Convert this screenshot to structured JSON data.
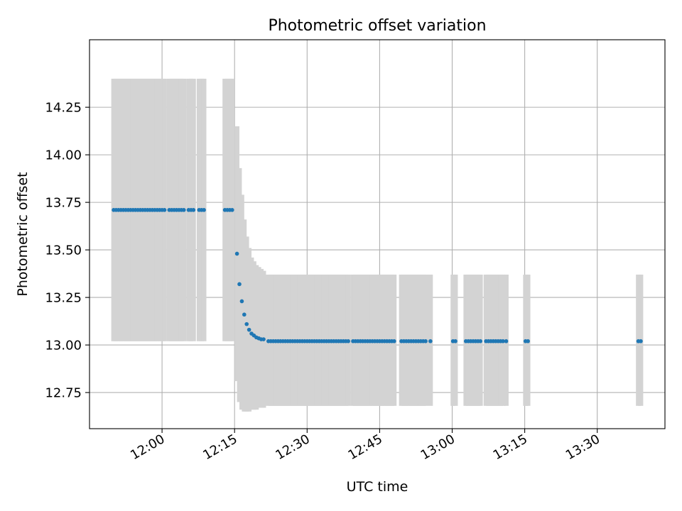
{
  "chart_data": {
    "type": "scatter",
    "title": "Photometric offset variation",
    "xlabel": "UTC time",
    "ylabel": "Photometric offset",
    "x_unit": "UTC time (HH:MM)",
    "xlim": [
      "11:45",
      "13:44"
    ],
    "ylim": [
      12.56,
      14.605
    ],
    "xticks": [
      "12:00",
      "12:15",
      "12:30",
      "12:45",
      "13:00",
      "13:15",
      "13:30"
    ],
    "yticks": [
      "12.75",
      "13.00",
      "13.25",
      "13.50",
      "13.75",
      "14.00",
      "14.25"
    ],
    "grid": true,
    "colors": {
      "points": "#1f77b4",
      "error_band": "#d3d3d3",
      "grid": "#b0b0b0"
    },
    "series": [
      {
        "points": [
          {
            "x": "11:50",
            "y": 13.71,
            "ylo": 13.02,
            "yhi": 14.4
          },
          {
            "x": "11:50:30",
            "y": 13.71,
            "ylo": 13.02,
            "yhi": 14.4
          },
          {
            "x": "11:51",
            "y": 13.71,
            "ylo": 13.02,
            "yhi": 14.4
          },
          {
            "x": "11:51:30",
            "y": 13.71,
            "ylo": 13.02,
            "yhi": 14.4
          },
          {
            "x": "11:52",
            "y": 13.71,
            "ylo": 13.02,
            "yhi": 14.4
          },
          {
            "x": "11:52:30",
            "y": 13.71,
            "ylo": 13.02,
            "yhi": 14.4
          },
          {
            "x": "11:53",
            "y": 13.71,
            "ylo": 13.02,
            "yhi": 14.4
          },
          {
            "x": "11:53:30",
            "y": 13.71,
            "ylo": 13.02,
            "yhi": 14.4
          },
          {
            "x": "11:54",
            "y": 13.71,
            "ylo": 13.02,
            "yhi": 14.4
          },
          {
            "x": "11:54:30",
            "y": 13.71,
            "ylo": 13.02,
            "yhi": 14.4
          },
          {
            "x": "11:55",
            "y": 13.71,
            "ylo": 13.02,
            "yhi": 14.4
          },
          {
            "x": "11:55:30",
            "y": 13.71,
            "ylo": 13.02,
            "yhi": 14.4
          },
          {
            "x": "11:56",
            "y": 13.71,
            "ylo": 13.02,
            "yhi": 14.4
          },
          {
            "x": "11:56:30",
            "y": 13.71,
            "ylo": 13.02,
            "yhi": 14.4
          },
          {
            "x": "11:57",
            "y": 13.71,
            "ylo": 13.02,
            "yhi": 14.4
          },
          {
            "x": "11:57:30",
            "y": 13.71,
            "ylo": 13.02,
            "yhi": 14.4
          },
          {
            "x": "11:58",
            "y": 13.71,
            "ylo": 13.02,
            "yhi": 14.4
          },
          {
            "x": "11:58:30",
            "y": 13.71,
            "ylo": 13.02,
            "yhi": 14.4
          },
          {
            "x": "11:59",
            "y": 13.71,
            "ylo": 13.02,
            "yhi": 14.4
          },
          {
            "x": "11:59:30",
            "y": 13.71,
            "ylo": 13.02,
            "yhi": 14.4
          },
          {
            "x": "12:00",
            "y": 13.71,
            "ylo": 13.02,
            "yhi": 14.4
          },
          {
            "x": "12:00:30",
            "y": 13.71,
            "ylo": 13.02,
            "yhi": 14.4
          },
          {
            "x": "12:01:30",
            "y": 13.71,
            "ylo": 13.02,
            "yhi": 14.4
          },
          {
            "x": "12:02",
            "y": 13.71,
            "ylo": 13.02,
            "yhi": 14.4
          },
          {
            "x": "12:02:30",
            "y": 13.71,
            "ylo": 13.02,
            "yhi": 14.4
          },
          {
            "x": "12:03",
            "y": 13.71,
            "ylo": 13.02,
            "yhi": 14.4
          },
          {
            "x": "12:03:30",
            "y": 13.71,
            "ylo": 13.02,
            "yhi": 14.4
          },
          {
            "x": "12:04",
            "y": 13.71,
            "ylo": 13.02,
            "yhi": 14.4
          },
          {
            "x": "12:04:30",
            "y": 13.71,
            "ylo": 13.02,
            "yhi": 14.4
          },
          {
            "x": "12:05:30",
            "y": 13.71,
            "ylo": 13.02,
            "yhi": 14.4
          },
          {
            "x": "12:06",
            "y": 13.71,
            "ylo": 13.02,
            "yhi": 14.4
          },
          {
            "x": "12:06:30",
            "y": 13.71,
            "ylo": 13.02,
            "yhi": 14.4
          },
          {
            "x": "12:07:40",
            "y": 13.71,
            "ylo": 13.02,
            "yhi": 14.4
          },
          {
            "x": "12:08:10",
            "y": 13.71,
            "ylo": 13.02,
            "yhi": 14.4
          },
          {
            "x": "12:08:40",
            "y": 13.71,
            "ylo": 13.02,
            "yhi": 14.4
          },
          {
            "x": "12:13",
            "y": 13.71,
            "ylo": 13.02,
            "yhi": 14.4
          },
          {
            "x": "12:13:30",
            "y": 13.71,
            "ylo": 13.02,
            "yhi": 14.4
          },
          {
            "x": "12:14",
            "y": 13.71,
            "ylo": 13.02,
            "yhi": 14.4
          },
          {
            "x": "12:14:30",
            "y": 13.71,
            "ylo": 13.02,
            "yhi": 14.4
          },
          {
            "x": "12:15:30",
            "y": 13.48,
            "ylo": 12.81,
            "yhi": 14.15
          },
          {
            "x": "12:16",
            "y": 13.32,
            "ylo": 12.7,
            "yhi": 13.93
          },
          {
            "x": "12:16:30",
            "y": 13.23,
            "ylo": 12.66,
            "yhi": 13.79
          },
          {
            "x": "12:17",
            "y": 13.16,
            "ylo": 12.65,
            "yhi": 13.66
          },
          {
            "x": "12:17:30",
            "y": 13.11,
            "ylo": 12.65,
            "yhi": 13.57
          },
          {
            "x": "12:18",
            "y": 13.08,
            "ylo": 12.65,
            "yhi": 13.51
          },
          {
            "x": "12:18:30",
            "y": 13.06,
            "ylo": 12.66,
            "yhi": 13.46
          },
          {
            "x": "12:19",
            "y": 13.05,
            "ylo": 12.66,
            "yhi": 13.44
          },
          {
            "x": "12:19:30",
            "y": 13.04,
            "ylo": 12.66,
            "yhi": 13.42
          },
          {
            "x": "12:20",
            "y": 13.035,
            "ylo": 12.67,
            "yhi": 13.41
          },
          {
            "x": "12:20:30",
            "y": 13.03,
            "ylo": 12.67,
            "yhi": 13.4
          },
          {
            "x": "12:21",
            "y": 13.03,
            "ylo": 12.67,
            "yhi": 13.39
          },
          {
            "x": "12:22",
            "y": 13.02,
            "ylo": 12.68,
            "yhi": 13.37
          },
          {
            "x": "12:22:30",
            "y": 13.02,
            "ylo": 12.68,
            "yhi": 13.37
          },
          {
            "x": "12:23",
            "y": 13.02,
            "ylo": 12.68,
            "yhi": 13.37
          },
          {
            "x": "12:23:30",
            "y": 13.02,
            "ylo": 12.68,
            "yhi": 13.37
          },
          {
            "x": "12:24",
            "y": 13.02,
            "ylo": 12.68,
            "yhi": 13.37
          },
          {
            "x": "12:24:30",
            "y": 13.02,
            "ylo": 12.68,
            "yhi": 13.37
          },
          {
            "x": "12:25",
            "y": 13.02,
            "ylo": 12.68,
            "yhi": 13.37
          },
          {
            "x": "12:25:30",
            "y": 13.02,
            "ylo": 12.68,
            "yhi": 13.37
          },
          {
            "x": "12:26",
            "y": 13.02,
            "ylo": 12.68,
            "yhi": 13.37
          },
          {
            "x": "12:26:30",
            "y": 13.02,
            "ylo": 12.68,
            "yhi": 13.37
          },
          {
            "x": "12:27",
            "y": 13.02,
            "ylo": 12.68,
            "yhi": 13.37
          },
          {
            "x": "12:27:30",
            "y": 13.02,
            "ylo": 12.68,
            "yhi": 13.37
          },
          {
            "x": "12:28",
            "y": 13.02,
            "ylo": 12.68,
            "yhi": 13.37
          },
          {
            "x": "12:28:30",
            "y": 13.02,
            "ylo": 12.68,
            "yhi": 13.37
          },
          {
            "x": "12:29",
            "y": 13.02,
            "ylo": 12.68,
            "yhi": 13.37
          },
          {
            "x": "12:29:30",
            "y": 13.02,
            "ylo": 12.68,
            "yhi": 13.37
          },
          {
            "x": "12:30",
            "y": 13.02,
            "ylo": 12.68,
            "yhi": 13.37
          },
          {
            "x": "12:30:30",
            "y": 13.02,
            "ylo": 12.68,
            "yhi": 13.37
          },
          {
            "x": "12:31",
            "y": 13.02,
            "ylo": 12.68,
            "yhi": 13.37
          },
          {
            "x": "12:31:30",
            "y": 13.02,
            "ylo": 12.68,
            "yhi": 13.37
          },
          {
            "x": "12:32",
            "y": 13.02,
            "ylo": 12.68,
            "yhi": 13.37
          },
          {
            "x": "12:32:30",
            "y": 13.02,
            "ylo": 12.68,
            "yhi": 13.37
          },
          {
            "x": "12:33",
            "y": 13.02,
            "ylo": 12.68,
            "yhi": 13.37
          },
          {
            "x": "12:33:30",
            "y": 13.02,
            "ylo": 12.68,
            "yhi": 13.37
          },
          {
            "x": "12:34",
            "y": 13.02,
            "ylo": 12.68,
            "yhi": 13.37
          },
          {
            "x": "12:34:30",
            "y": 13.02,
            "ylo": 12.68,
            "yhi": 13.37
          },
          {
            "x": "12:35",
            "y": 13.02,
            "ylo": 12.68,
            "yhi": 13.37
          },
          {
            "x": "12:35:30",
            "y": 13.02,
            "ylo": 12.68,
            "yhi": 13.37
          },
          {
            "x": "12:36",
            "y": 13.02,
            "ylo": 12.68,
            "yhi": 13.37
          },
          {
            "x": "12:36:30",
            "y": 13.02,
            "ylo": 12.68,
            "yhi": 13.37
          },
          {
            "x": "12:37",
            "y": 13.02,
            "ylo": 12.68,
            "yhi": 13.37
          },
          {
            "x": "12:37:30",
            "y": 13.02,
            "ylo": 12.68,
            "yhi": 13.37
          },
          {
            "x": "12:38",
            "y": 13.02,
            "ylo": 12.68,
            "yhi": 13.37
          },
          {
            "x": "12:38:30",
            "y": 13.02,
            "ylo": 12.68,
            "yhi": 13.37
          },
          {
            "x": "12:39:30",
            "y": 13.02,
            "ylo": 12.68,
            "yhi": 13.37
          },
          {
            "x": "12:40",
            "y": 13.02,
            "ylo": 12.68,
            "yhi": 13.37
          },
          {
            "x": "12:40:30",
            "y": 13.02,
            "ylo": 12.68,
            "yhi": 13.37
          },
          {
            "x": "12:41",
            "y": 13.02,
            "ylo": 12.68,
            "yhi": 13.37
          },
          {
            "x": "12:41:30",
            "y": 13.02,
            "ylo": 12.68,
            "yhi": 13.37
          },
          {
            "x": "12:42",
            "y": 13.02,
            "ylo": 12.68,
            "yhi": 13.37
          },
          {
            "x": "12:42:30",
            "y": 13.02,
            "ylo": 12.68,
            "yhi": 13.37
          },
          {
            "x": "12:43",
            "y": 13.02,
            "ylo": 12.68,
            "yhi": 13.37
          },
          {
            "x": "12:43:30",
            "y": 13.02,
            "ylo": 12.68,
            "yhi": 13.37
          },
          {
            "x": "12:44",
            "y": 13.02,
            "ylo": 12.68,
            "yhi": 13.37
          },
          {
            "x": "12:44:30",
            "y": 13.02,
            "ylo": 12.68,
            "yhi": 13.37
          },
          {
            "x": "12:45",
            "y": 13.02,
            "ylo": 12.68,
            "yhi": 13.37
          },
          {
            "x": "12:45:30",
            "y": 13.02,
            "ylo": 12.68,
            "yhi": 13.37
          },
          {
            "x": "12:46",
            "y": 13.02,
            "ylo": 12.68,
            "yhi": 13.37
          },
          {
            "x": "12:46:30",
            "y": 13.02,
            "ylo": 12.68,
            "yhi": 13.37
          },
          {
            "x": "12:47",
            "y": 13.02,
            "ylo": 12.68,
            "yhi": 13.37
          },
          {
            "x": "12:47:30",
            "y": 13.02,
            "ylo": 12.68,
            "yhi": 13.37
          },
          {
            "x": "12:48",
            "y": 13.02,
            "ylo": 12.68,
            "yhi": 13.37
          },
          {
            "x": "12:49:30",
            "y": 13.02,
            "ylo": 12.68,
            "yhi": 13.37
          },
          {
            "x": "12:50",
            "y": 13.02,
            "ylo": 12.68,
            "yhi": 13.37
          },
          {
            "x": "12:50:30",
            "y": 13.02,
            "ylo": 12.68,
            "yhi": 13.37
          },
          {
            "x": "12:51",
            "y": 13.02,
            "ylo": 12.68,
            "yhi": 13.37
          },
          {
            "x": "12:51:30",
            "y": 13.02,
            "ylo": 12.68,
            "yhi": 13.37
          },
          {
            "x": "12:52",
            "y": 13.02,
            "ylo": 12.68,
            "yhi": 13.37
          },
          {
            "x": "12:52:30",
            "y": 13.02,
            "ylo": 12.68,
            "yhi": 13.37
          },
          {
            "x": "12:53",
            "y": 13.02,
            "ylo": 12.68,
            "yhi": 13.37
          },
          {
            "x": "12:53:30",
            "y": 13.02,
            "ylo": 12.68,
            "yhi": 13.37
          },
          {
            "x": "12:54",
            "y": 13.02,
            "ylo": 12.68,
            "yhi": 13.37
          },
          {
            "x": "12:54:30",
            "y": 13.02,
            "ylo": 12.68,
            "yhi": 13.37
          },
          {
            "x": "12:55:30",
            "y": 13.02,
            "ylo": 12.68,
            "yhi": 13.37
          },
          {
            "x": "13:00:10",
            "y": 13.02,
            "ylo": 12.68,
            "yhi": 13.37
          },
          {
            "x": "13:00:40",
            "y": 13.02,
            "ylo": 12.68,
            "yhi": 13.37
          },
          {
            "x": "13:02:50",
            "y": 13.02,
            "ylo": 12.68,
            "yhi": 13.37
          },
          {
            "x": "13:03:20",
            "y": 13.02,
            "ylo": 12.68,
            "yhi": 13.37
          },
          {
            "x": "13:03:50",
            "y": 13.02,
            "ylo": 12.68,
            "yhi": 13.37
          },
          {
            "x": "13:04:20",
            "y": 13.02,
            "ylo": 12.68,
            "yhi": 13.37
          },
          {
            "x": "13:04:50",
            "y": 13.02,
            "ylo": 12.68,
            "yhi": 13.37
          },
          {
            "x": "13:05:20",
            "y": 13.02,
            "ylo": 12.68,
            "yhi": 13.37
          },
          {
            "x": "13:05:50",
            "y": 13.02,
            "ylo": 12.68,
            "yhi": 13.37
          },
          {
            "x": "13:07",
            "y": 13.02,
            "ylo": 12.68,
            "yhi": 13.37
          },
          {
            "x": "13:07:30",
            "y": 13.02,
            "ylo": 12.68,
            "yhi": 13.37
          },
          {
            "x": "13:08",
            "y": 13.02,
            "ylo": 12.68,
            "yhi": 13.37
          },
          {
            "x": "13:08:30",
            "y": 13.02,
            "ylo": 12.68,
            "yhi": 13.37
          },
          {
            "x": "13:09",
            "y": 13.02,
            "ylo": 12.68,
            "yhi": 13.37
          },
          {
            "x": "13:09:30",
            "y": 13.02,
            "ylo": 12.68,
            "yhi": 13.37
          },
          {
            "x": "13:10",
            "y": 13.02,
            "ylo": 12.68,
            "yhi": 13.37
          },
          {
            "x": "13:10:30",
            "y": 13.02,
            "ylo": 12.68,
            "yhi": 13.37
          },
          {
            "x": "13:11:10",
            "y": 13.02,
            "ylo": 12.68,
            "yhi": 13.37
          },
          {
            "x": "13:15:10",
            "y": 13.02,
            "ylo": 12.68,
            "yhi": 13.37
          },
          {
            "x": "13:15:40",
            "y": 13.02,
            "ylo": 12.68,
            "yhi": 13.37
          },
          {
            "x": "13:38:30",
            "y": 13.02,
            "ylo": 12.68,
            "yhi": 13.37
          },
          {
            "x": "13:39",
            "y": 13.02,
            "ylo": 12.68,
            "yhi": 13.37
          }
        ]
      }
    ]
  }
}
